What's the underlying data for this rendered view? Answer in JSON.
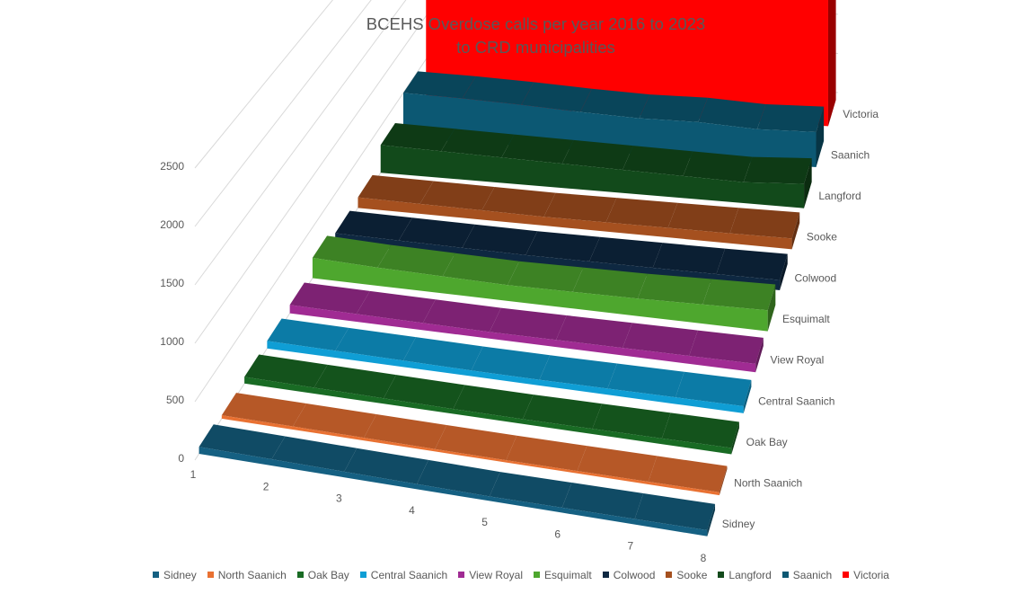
{
  "chart_data": {
    "type": "area",
    "title": [
      "BCEHS Overdose calls per year 2016 to 2023",
      "to CRD municipalities"
    ],
    "categories": [
      "1",
      "2",
      "3",
      "4",
      "5",
      "6",
      "7",
      "8"
    ],
    "yticks": [
      "0",
      "500",
      "1000",
      "1500",
      "2000",
      "2500"
    ],
    "ylim": [
      0,
      2500
    ],
    "legend_position": "bottom",
    "series": [
      {
        "name": "Sidney",
        "color": "#156082",
        "values": [
          60,
          55,
          50,
          45,
          40,
          45,
          50,
          55
        ]
      },
      {
        "name": "North Saanich",
        "color": "#E97132",
        "values": [
          30,
          28,
          25,
          22,
          20,
          22,
          25,
          28
        ]
      },
      {
        "name": "Oak Bay",
        "color": "#196B24",
        "values": [
          60,
          55,
          50,
          45,
          45,
          50,
          55,
          60
        ]
      },
      {
        "name": "Central Saanich",
        "color": "#0F9ED5",
        "values": [
          70,
          65,
          60,
          55,
          55,
          60,
          65,
          70
        ]
      },
      {
        "name": "View Royal",
        "color": "#A02B93",
        "values": [
          80,
          75,
          70,
          65,
          70,
          75,
          80,
          85
        ]
      },
      {
        "name": "Esquimalt",
        "color": "#4EA72E",
        "values": [
          200,
          180,
          170,
          160,
          170,
          180,
          200,
          220
        ]
      },
      {
        "name": "Colwood",
        "color": "#0E2841",
        "values": [
          100,
          95,
          90,
          85,
          90,
          95,
          100,
          110
        ]
      },
      {
        "name": "Sooke",
        "color": "#A5501F",
        "values": [
          110,
          105,
          100,
          95,
          100,
          105,
          110,
          120
        ]
      },
      {
        "name": "Langford",
        "color": "#124A1B",
        "values": [
          300,
          290,
          280,
          270,
          260,
          250,
          240,
          280
        ]
      },
      {
        "name": "Saanich",
        "color": "#0C5873",
        "values": [
          500,
          490,
          470,
          440,
          420,
          430,
          400,
          420
        ]
      },
      {
        "name": "Victoria",
        "color": "#FF0000",
        "values": [
          1500,
          1700,
          1900,
          1800,
          1900,
          2300,
          2400,
          2700
        ]
      }
    ]
  }
}
